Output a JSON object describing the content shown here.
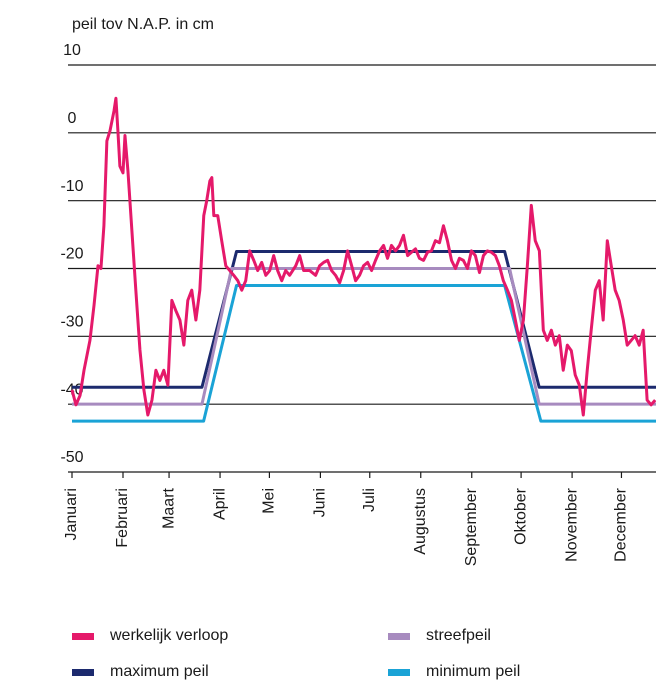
{
  "chart_data": {
    "type": "line",
    "ylabel": "peil tov N.A.P. in cm",
    "xlim": [
      0,
      355
    ],
    "xticks": [
      {
        "value": 0,
        "label": "Januari"
      },
      {
        "value": 31,
        "label": "Februari"
      },
      {
        "value": 59,
        "label": "Maart"
      },
      {
        "value": 90,
        "label": "April"
      },
      {
        "value": 120,
        "label": "Mei"
      },
      {
        "value": 151,
        "label": "Juni"
      },
      {
        "value": 181,
        "label": "Juli"
      },
      {
        "value": 212,
        "label": "Augustus"
      },
      {
        "value": 243,
        "label": "September"
      },
      {
        "value": 273,
        "label": "Oktober"
      },
      {
        "value": 304,
        "label": "November"
      },
      {
        "value": 334,
        "label": "December"
      }
    ],
    "ylim": [
      -50,
      10
    ],
    "yticks": [
      10,
      0,
      -10,
      -20,
      -30,
      -40,
      -50
    ],
    "grid": true,
    "series": [
      {
        "name": "werkelijk verloop",
        "color": "#e5196a",
        "x": [
          0,
          2.4,
          4.9,
          7.3,
          10.9,
          13.4,
          15.8,
          17.6,
          19.4,
          21.2,
          23.1,
          25.5,
          26.7,
          27.9,
          29.1,
          31,
          32.2,
          34,
          36.4,
          38.8,
          41.3,
          43.7,
          46.1,
          48.6,
          51,
          53.4,
          55.8,
          58.3,
          60.7,
          63.1,
          65.6,
          68,
          70.4,
          72.8,
          75.3,
          77.7,
          80.1,
          81.9,
          83.8,
          85,
          86.2,
          88.6,
          91,
          93.5,
          95.9,
          98.3,
          100.8,
          103.2,
          105.6,
          108,
          110.5,
          112.9,
          115.3,
          117.8,
          120.2,
          122.6,
          125,
          127.5,
          129.9,
          132.3,
          136,
          138.4,
          140.8,
          144.5,
          148.1,
          150.5,
          153,
          155.4,
          157.8,
          160.2,
          162.7,
          165.1,
          167.5,
          170,
          172.4,
          174.8,
          177.2,
          179.7,
          182.1,
          184.5,
          187,
          189.4,
          191.8,
          194.2,
          196.7,
          199.1,
          201.5,
          204,
          206.4,
          208.8,
          211.2,
          213.7,
          216.1,
          218.5,
          220.9,
          223.4,
          225.8,
          228.2,
          230.7,
          233.1,
          235.5,
          237.9,
          240.4,
          242.8,
          245.2,
          247.7,
          250.1,
          252.5,
          254.9,
          257.4,
          259.8,
          262.2,
          264.7,
          267.1,
          269.5,
          271.9,
          274.4,
          276.8,
          279.2,
          281.6,
          284.1,
          286.5,
          288.9,
          291.4,
          293.8,
          296.2,
          298.6,
          301.1,
          303.5,
          305.9,
          308.4,
          310.8,
          313.2,
          315.6,
          318.1,
          320.5,
          322.9,
          325.4,
          327.8,
          330.2,
          332.6,
          335.1,
          337.5,
          339.9,
          342.3,
          344.8,
          347.2,
          349.6,
          352,
          354.5
        ],
        "values": [
          -37.9,
          -40.1,
          -38.7,
          -35,
          -30.6,
          -25.4,
          -19.6,
          -20,
          -13.7,
          -1.2,
          0.3,
          3.2,
          5.1,
          0.3,
          -4.9,
          -5.9,
          -0.4,
          -5.6,
          -14.4,
          -23.2,
          -32,
          -37.9,
          -41.6,
          -39.4,
          -35,
          -36.5,
          -35,
          -37.2,
          -24.7,
          -26.2,
          -27.6,
          -31.3,
          -24.7,
          -23.2,
          -27.6,
          -23.2,
          -12.2,
          -10,
          -7.1,
          -6.6,
          -12.2,
          -12.2,
          -15.9,
          -19.6,
          -20.3,
          -21,
          -21.8,
          -23.2,
          -21.8,
          -17.4,
          -18.8,
          -20.3,
          -19.1,
          -21,
          -20.3,
          -18.1,
          -20.3,
          -21.8,
          -20.3,
          -21,
          -19.6,
          -18.1,
          -20.3,
          -20.3,
          -21,
          -19.6,
          -19.1,
          -18.8,
          -20.3,
          -21,
          -22.1,
          -20.3,
          -17.4,
          -19.6,
          -21.8,
          -21,
          -19.6,
          -19.1,
          -20.3,
          -18.8,
          -17.4,
          -16.6,
          -18.5,
          -16.6,
          -17.4,
          -16.6,
          -15.1,
          -18.1,
          -17.6,
          -17.1,
          -18.5,
          -18.8,
          -17.6,
          -17.4,
          -15.9,
          -16.2,
          -13.7,
          -15.9,
          -18.8,
          -20,
          -18.5,
          -18.8,
          -20,
          -17.4,
          -18.1,
          -20.6,
          -18.1,
          -17.4,
          -17.6,
          -18.1,
          -19.6,
          -21.8,
          -23.2,
          -24.7,
          -27.6,
          -30.6,
          -27.6,
          -19.6,
          -10.7,
          -15.9,
          -17.4,
          -29.1,
          -30.6,
          -29.1,
          -31.3,
          -29.9,
          -35,
          -31.3,
          -32.1,
          -35.7,
          -37.2,
          -41.6,
          -35,
          -29.1,
          -23.2,
          -21.8,
          -27.6,
          -15.9,
          -19.6,
          -23.2,
          -24.7,
          -27.6,
          -31.3,
          -30.6,
          -29.9,
          -31.3,
          -29.1,
          -39.4,
          -40.1,
          -39.4
        ]
      },
      {
        "name": "streefpeil",
        "color": "#a78bbf",
        "x": [
          0,
          79,
          97,
          266,
          284,
          355
        ],
        "values": [
          -40,
          -40,
          -20,
          -20,
          -40,
          -40
        ]
      },
      {
        "name": "maximum peil",
        "color": "#1c2a6e",
        "x": [
          0,
          79,
          100,
          263,
          284,
          355
        ],
        "values": [
          -37.5,
          -37.5,
          -17.5,
          -17.5,
          -37.5,
          -37.5
        ]
      },
      {
        "name": "minimum peil",
        "color": "#1aa3d6",
        "x": [
          0,
          80,
          100,
          263,
          285,
          355
        ],
        "values": [
          -42.5,
          -42.5,
          -22.5,
          -22.5,
          -42.5,
          -42.5
        ]
      }
    ]
  }
}
